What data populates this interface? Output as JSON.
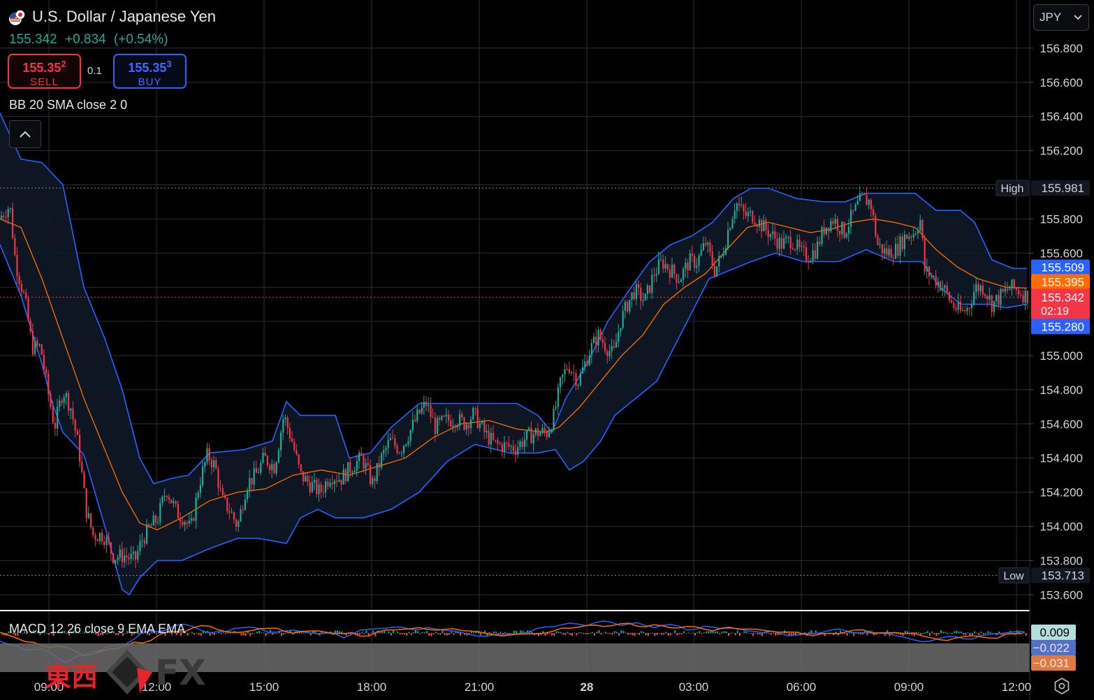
{
  "header": {
    "title": "U.S. Dollar / Japanese Yen",
    "last": "155.342",
    "change": "+0.834",
    "change_pct": "(+0.54%)",
    "sell_price_main": "155.35",
    "sell_price_sup": "2",
    "sell_label": "SELL",
    "buy_price_main": "155.35",
    "buy_price_sup": "3",
    "buy_label": "BUY",
    "lot_size": "0.1",
    "bb_indicator": "BB 20 SMA close 2 0",
    "macd_indicator": "MACD 12 26 close 9 EMA EMA",
    "currency": "JPY"
  },
  "logo_text": {
    "cjk": "東西",
    "fx": "FX"
  },
  "icons": {
    "flag": "us-jp-flag-icon",
    "collapse": "chevron-up-icon",
    "currency_dropdown": "chevron-down-icon",
    "settings": "gear-icon"
  },
  "colors": {
    "up": "#22ab94",
    "down": "#f23645",
    "bb_band": "#2962ff",
    "bb_basis": "#ff6d00",
    "macd_line": "#2962ff",
    "signal_line": "#ff6d00",
    "grid": "#2a2e39"
  },
  "chart_data": {
    "type": "candlestick",
    "symbol": "USD/JPY",
    "ylim": [
      153.5,
      157.0
    ],
    "y_ticks": [
      "156.800",
      "156.600",
      "156.400",
      "156.200",
      "155.800",
      "155.600",
      "155.000",
      "154.800",
      "154.600",
      "154.400",
      "154.200",
      "154.000",
      "153.800",
      "153.600"
    ],
    "x_ticks": [
      "09:00",
      "12:00",
      "15:00",
      "18:00",
      "21:00",
      "28",
      "03:00",
      "06:00",
      "09:00",
      "12:00"
    ],
    "session_high": {
      "label": "High",
      "value": "155.981"
    },
    "session_low": {
      "label": "Low",
      "value": "153.713"
    },
    "price_labels": [
      {
        "name": "bb-upper",
        "value": "155.509",
        "color": "#2962ff"
      },
      {
        "name": "bb-basis",
        "value": "155.395",
        "color": "#ff6d00"
      },
      {
        "name": "last-price",
        "value": "155.342",
        "sub": "02:19",
        "color": "#f23645"
      },
      {
        "name": "bb-lower",
        "value": "155.280",
        "color": "#2962ff"
      }
    ],
    "close_path": [
      [
        0,
        155.8
      ],
      [
        16,
        155.88
      ],
      [
        24,
        155.55
      ],
      [
        38,
        155.32
      ],
      [
        48,
        155.05
      ],
      [
        60,
        155.05
      ],
      [
        70,
        154.8
      ],
      [
        80,
        154.58
      ],
      [
        92,
        154.8
      ],
      [
        103,
        154.7
      ],
      [
        115,
        154.45
      ],
      [
        125,
        154.1
      ],
      [
        135,
        153.95
      ],
      [
        150,
        153.95
      ],
      [
        165,
        153.82
      ],
      [
        180,
        153.83
      ],
      [
        195,
        153.8
      ],
      [
        205,
        153.92
      ],
      [
        218,
        154.0
      ],
      [
        228,
        154.05
      ],
      [
        240,
        154.22
      ],
      [
        255,
        154.08
      ],
      [
        265,
        154.05
      ],
      [
        275,
        153.98
      ],
      [
        287,
        154.25
      ],
      [
        299,
        154.42
      ],
      [
        310,
        154.35
      ],
      [
        320,
        154.15
      ],
      [
        330,
        154.1
      ],
      [
        342,
        154.0
      ],
      [
        355,
        154.25
      ],
      [
        368,
        154.3
      ],
      [
        380,
        154.4
      ],
      [
        395,
        154.35
      ],
      [
        408,
        154.65
      ],
      [
        420,
        154.5
      ],
      [
        432,
        154.3
      ],
      [
        445,
        154.25
      ],
      [
        460,
        154.2
      ],
      [
        475,
        154.3
      ],
      [
        490,
        154.28
      ],
      [
        505,
        154.35
      ],
      [
        520,
        154.4
      ],
      [
        535,
        154.25
      ],
      [
        548,
        154.4
      ],
      [
        560,
        154.5
      ],
      [
        575,
        154.45
      ],
      [
        588,
        154.55
      ],
      [
        600,
        154.65
      ],
      [
        612,
        154.72
      ],
      [
        625,
        154.58
      ],
      [
        640,
        154.62
      ],
      [
        655,
        154.63
      ],
      [
        668,
        154.6
      ],
      [
        680,
        154.66
      ],
      [
        695,
        154.55
      ],
      [
        710,
        154.48
      ],
      [
        725,
        154.47
      ],
      [
        740,
        154.46
      ],
      [
        755,
        154.52
      ],
      [
        770,
        154.55
      ],
      [
        785,
        154.55
      ],
      [
        795,
        154.65
      ],
      [
        805,
        154.85
      ],
      [
        815,
        154.95
      ],
      [
        830,
        154.85
      ],
      [
        845,
        155.02
      ],
      [
        858,
        155.12
      ],
      [
        870,
        155.05
      ],
      [
        880,
        155.0
      ],
      [
        890,
        155.2
      ],
      [
        900,
        155.3
      ],
      [
        910,
        155.38
      ],
      [
        925,
        155.32
      ],
      [
        938,
        155.48
      ],
      [
        950,
        155.55
      ],
      [
        962,
        155.5
      ],
      [
        975,
        155.45
      ],
      [
        988,
        155.55
      ],
      [
        1000,
        155.55
      ],
      [
        1012,
        155.66
      ],
      [
        1025,
        155.5
      ],
      [
        1035,
        155.58
      ],
      [
        1045,
        155.75
      ],
      [
        1055,
        155.9
      ],
      [
        1068,
        155.82
      ],
      [
        1080,
        155.82
      ],
      [
        1095,
        155.75
      ],
      [
        1108,
        155.7
      ],
      [
        1120,
        155.65
      ],
      [
        1135,
        155.68
      ],
      [
        1148,
        155.6
      ],
      [
        1158,
        155.58
      ],
      [
        1170,
        155.62
      ],
      [
        1182,
        155.75
      ],
      [
        1195,
        155.8
      ],
      [
        1210,
        155.72
      ],
      [
        1222,
        155.82
      ],
      [
        1235,
        155.92
      ],
      [
        1248,
        155.9
      ],
      [
        1258,
        155.65
      ],
      [
        1270,
        155.6
      ],
      [
        1285,
        155.62
      ],
      [
        1298,
        155.7
      ],
      [
        1310,
        155.72
      ],
      [
        1320,
        155.8
      ],
      [
        1325,
        155.5
      ],
      [
        1340,
        155.45
      ],
      [
        1352,
        155.4
      ],
      [
        1365,
        155.3
      ],
      [
        1378,
        155.25
      ],
      [
        1388,
        155.28
      ],
      [
        1398,
        155.4
      ],
      [
        1410,
        155.4
      ],
      [
        1422,
        155.3
      ],
      [
        1435,
        155.35
      ],
      [
        1448,
        155.4
      ],
      [
        1460,
        155.38
      ],
      [
        1470,
        155.35
      ]
    ],
    "bb_upper": [
      [
        0,
        156.42
      ],
      [
        30,
        156.15
      ],
      [
        60,
        156.13
      ],
      [
        90,
        156.0
      ],
      [
        120,
        155.4
      ],
      [
        150,
        155.1
      ],
      [
        175,
        154.8
      ],
      [
        200,
        154.4
      ],
      [
        220,
        154.25
      ],
      [
        245,
        154.28
      ],
      [
        270,
        154.3
      ],
      [
        300,
        154.43
      ],
      [
        350,
        154.45
      ],
      [
        390,
        154.5
      ],
      [
        410,
        154.73
      ],
      [
        430,
        154.65
      ],
      [
        480,
        154.65
      ],
      [
        500,
        154.4
      ],
      [
        530,
        154.43
      ],
      [
        560,
        154.58
      ],
      [
        600,
        154.72
      ],
      [
        650,
        154.72
      ],
      [
        700,
        154.72
      ],
      [
        740,
        154.72
      ],
      [
        770,
        154.65
      ],
      [
        790,
        154.55
      ],
      [
        810,
        154.75
      ],
      [
        840,
        154.95
      ],
      [
        870,
        155.2
      ],
      [
        900,
        155.38
      ],
      [
        930,
        155.55
      ],
      [
        960,
        155.65
      ],
      [
        990,
        155.7
      ],
      [
        1020,
        155.78
      ],
      [
        1050,
        155.92
      ],
      [
        1075,
        155.98
      ],
      [
        1100,
        155.98
      ],
      [
        1140,
        155.92
      ],
      [
        1180,
        155.9
      ],
      [
        1210,
        155.9
      ],
      [
        1240,
        155.95
      ],
      [
        1270,
        155.95
      ],
      [
        1310,
        155.95
      ],
      [
        1340,
        155.85
      ],
      [
        1375,
        155.85
      ],
      [
        1395,
        155.78
      ],
      [
        1420,
        155.56
      ],
      [
        1450,
        155.51
      ],
      [
        1470,
        155.51
      ]
    ],
    "bb_lower": [
      [
        0,
        155.65
      ],
      [
        30,
        155.35
      ],
      [
        60,
        154.95
      ],
      [
        75,
        154.72
      ],
      [
        90,
        154.55
      ],
      [
        120,
        154.42
      ],
      [
        150,
        154.0
      ],
      [
        175,
        153.63
      ],
      [
        185,
        153.6
      ],
      [
        200,
        153.7
      ],
      [
        225,
        153.8
      ],
      [
        260,
        153.8
      ],
      [
        300,
        153.87
      ],
      [
        340,
        153.93
      ],
      [
        370,
        153.93
      ],
      [
        410,
        153.9
      ],
      [
        430,
        154.05
      ],
      [
        455,
        154.1
      ],
      [
        480,
        154.05
      ],
      [
        520,
        154.05
      ],
      [
        560,
        154.1
      ],
      [
        600,
        154.2
      ],
      [
        640,
        154.38
      ],
      [
        680,
        154.48
      ],
      [
        730,
        154.43
      ],
      [
        770,
        154.43
      ],
      [
        795,
        154.45
      ],
      [
        815,
        154.33
      ],
      [
        835,
        154.38
      ],
      [
        860,
        154.5
      ],
      [
        880,
        154.65
      ],
      [
        910,
        154.75
      ],
      [
        940,
        154.85
      ],
      [
        965,
        155.05
      ],
      [
        990,
        155.25
      ],
      [
        1015,
        155.45
      ],
      [
        1045,
        155.5
      ],
      [
        1075,
        155.55
      ],
      [
        1110,
        155.6
      ],
      [
        1150,
        155.55
      ],
      [
        1200,
        155.55
      ],
      [
        1240,
        155.62
      ],
      [
        1280,
        155.55
      ],
      [
        1320,
        155.55
      ],
      [
        1345,
        155.4
      ],
      [
        1375,
        155.3
      ],
      [
        1395,
        155.3
      ],
      [
        1415,
        155.3
      ],
      [
        1440,
        155.28
      ],
      [
        1470,
        155.3
      ]
    ],
    "bb_basis": [
      [
        0,
        155.8
      ],
      [
        30,
        155.75
      ],
      [
        60,
        155.45
      ],
      [
        90,
        155.1
      ],
      [
        120,
        154.75
      ],
      [
        150,
        154.45
      ],
      [
        175,
        154.2
      ],
      [
        200,
        154.02
      ],
      [
        225,
        153.98
      ],
      [
        260,
        154.05
      ],
      [
        300,
        154.15
      ],
      [
        340,
        154.2
      ],
      [
        380,
        154.22
      ],
      [
        420,
        154.3
      ],
      [
        460,
        154.33
      ],
      [
        500,
        154.3
      ],
      [
        540,
        154.35
      ],
      [
        580,
        154.4
      ],
      [
        620,
        154.52
      ],
      [
        660,
        154.6
      ],
      [
        700,
        154.62
      ],
      [
        740,
        154.57
      ],
      [
        780,
        154.55
      ],
      [
        800,
        154.58
      ],
      [
        830,
        154.7
      ],
      [
        860,
        154.85
      ],
      [
        890,
        155.0
      ],
      [
        920,
        155.12
      ],
      [
        950,
        155.3
      ],
      [
        980,
        155.4
      ],
      [
        1010,
        155.48
      ],
      [
        1040,
        155.62
      ],
      [
        1070,
        155.75
      ],
      [
        1100,
        155.78
      ],
      [
        1130,
        155.75
      ],
      [
        1160,
        155.72
      ],
      [
        1190,
        155.74
      ],
      [
        1220,
        155.78
      ],
      [
        1250,
        155.8
      ],
      [
        1280,
        155.78
      ],
      [
        1310,
        155.75
      ],
      [
        1340,
        155.62
      ],
      [
        1370,
        155.52
      ],
      [
        1400,
        155.45
      ],
      [
        1440,
        155.4
      ],
      [
        1470,
        155.395
      ]
    ],
    "macd_panel": {
      "labels": [
        {
          "name": "macd-value",
          "value": "0.009"
        },
        {
          "name": "macd-line-value",
          "value": "−0.022"
        },
        {
          "name": "signal-value",
          "value": "−0.031"
        }
      ]
    }
  }
}
